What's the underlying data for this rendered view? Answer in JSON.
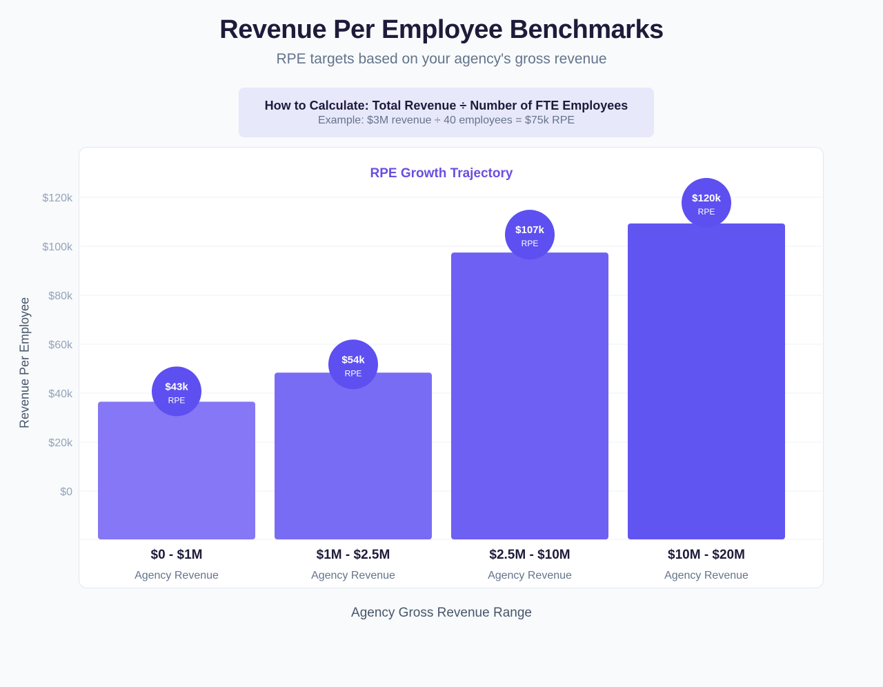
{
  "header": {
    "title": "Revenue Per Employee Benchmarks",
    "subtitle": "RPE targets based on your agency's gross revenue"
  },
  "formula": {
    "line1": "How to Calculate: Total Revenue ÷ Number of FTE Employees",
    "line2": "Example: $3M revenue ÷ 40 employees = $75k RPE"
  },
  "colors": {
    "accent": "#6a4fe0",
    "bar_light": "#8577f5",
    "bar_dark": "#6155f2",
    "badge": "#5d4ff0"
  },
  "chart_data": {
    "type": "bar",
    "title": "RPE Growth Trajectory",
    "xlabel": "Agency Gross Revenue Range",
    "ylabel": "Revenue Per Employee",
    "ylim": [
      0,
      120
    ],
    "y_ticks": [
      "$0",
      "$20k",
      "$40k",
      "$60k",
      "$80k",
      "$100k",
      "$120k"
    ],
    "y_tick_values": [
      0,
      20,
      40,
      60,
      80,
      100,
      120
    ],
    "grid": true,
    "categories": [
      "$0 - $1M",
      "$1M - $2.5M",
      "$2.5M - $10M",
      "$10M - $20M"
    ],
    "category_sublabel": "Agency Revenue",
    "values": [
      43,
      54,
      107,
      120
    ],
    "data_labels": [
      "$43k",
      "$54k",
      "$107k",
      "$120k"
    ],
    "data_label_unit": "RPE"
  }
}
